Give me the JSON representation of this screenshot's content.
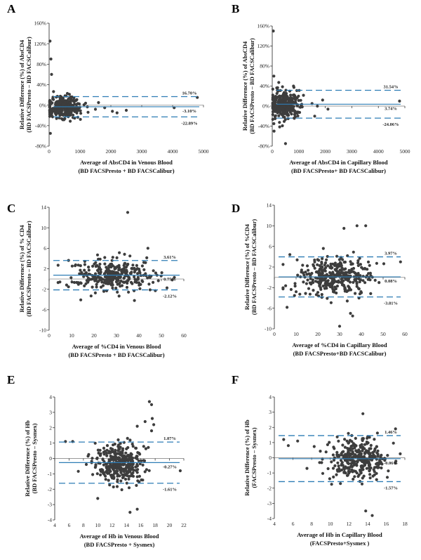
{
  "colors": {
    "points": "#3d3d3d",
    "limit_line": "#2e7db5",
    "mean_line": "#2e7db5",
    "zero_line": "#9a9a9a",
    "axis": "#222222"
  },
  "chart_data": [
    {
      "panel": "A",
      "type": "scatter",
      "xlabel_line1": "Average of AbsCD4 in Venous Blood",
      "xlabel_line2": "(BD FACSPresto + BD FACSCalibur)",
      "ylabel_line1": "Relative Difference (%) of AbsCD4",
      "ylabel_line2": "(BD FACSPresto – BD FACSCalibur)",
      "xlim": [
        0,
        5000
      ],
      "ylim": [
        -80,
        160
      ],
      "x_ticks": [
        0,
        1000,
        2000,
        3000,
        4000,
        5000
      ],
      "y_ticks": [
        160,
        120,
        80,
        40,
        0,
        -40,
        -80
      ],
      "y_tick_labels": [
        "160%",
        "120%",
        "80%",
        "40%",
        "0%",
        "-40%",
        "-80%"
      ],
      "mean": -3.1,
      "upper_loa": 16.7,
      "lower_loa": -22.89,
      "mean_label": "-3.10%",
      "upper_label": "16.70%",
      "lower_label": "-22.89%",
      "cluster": {
        "x_center": 450,
        "x_spread": 280,
        "x_min": 20,
        "x_max": 1300,
        "y_sd": 10,
        "n": 320
      },
      "extra_points": [
        [
          30,
          125
        ],
        [
          60,
          90
        ],
        [
          80,
          60
        ],
        [
          40,
          -55
        ],
        [
          1500,
          -8
        ],
        [
          1800,
          -5
        ],
        [
          2050,
          -12
        ],
        [
          2200,
          -15
        ],
        [
          2500,
          -10
        ],
        [
          1600,
          5
        ],
        [
          4050,
          -5
        ],
        [
          4800,
          15
        ]
      ]
    },
    {
      "panel": "B",
      "type": "scatter",
      "xlabel_line1": "Average of AbsCD4 in Capillary Blood",
      "xlabel_line2": "(BD FACSPresto+ BD FACSCalibur)",
      "ylabel_line1": "Relative Difference (%) of AbsCD4",
      "ylabel_line2": "(BD FACSPresto – BD FACSCalibur)",
      "xlim": [
        0,
        5000
      ],
      "ylim": [
        -80,
        160
      ],
      "x_ticks": [
        0,
        1000,
        2000,
        3000,
        4000,
        5000
      ],
      "y_ticks": [
        160,
        120,
        80,
        40,
        0,
        -40,
        -80
      ],
      "y_tick_labels": [
        "160%",
        "120%",
        "80%",
        "40%",
        "0%",
        "-40%",
        "-80%"
      ],
      "mean": 3.74,
      "upper_loa": 31.54,
      "lower_loa": -24.06,
      "mean_label": "3.74%",
      "upper_label": "31.54%",
      "lower_label": "-24.06%",
      "cluster": {
        "x_center": 450,
        "x_spread": 280,
        "x_min": 20,
        "x_max": 1300,
        "y_sd": 14,
        "n": 320
      },
      "extra_points": [
        [
          40,
          150
        ],
        [
          60,
          60
        ],
        [
          70,
          -50
        ],
        [
          500,
          -75
        ],
        [
          1500,
          5
        ],
        [
          1700,
          0
        ],
        [
          1900,
          12
        ],
        [
          2100,
          -6
        ],
        [
          1600,
          -20
        ],
        [
          4800,
          10
        ]
      ]
    },
    {
      "panel": "C",
      "type": "scatter",
      "xlabel_line1": "Average of %CD4 in Venous Blood",
      "xlabel_line2": "(BD FACSPresto + BD FACSCalibur)",
      "ylabel_line1": "Relative Difference (%) of % CD4",
      "ylabel_line2": "(BD FACSPresto – BD FACSCalibur)",
      "xlim": [
        0,
        60
      ],
      "ylim": [
        -10,
        14
      ],
      "x_ticks": [
        0,
        10,
        20,
        30,
        40,
        50,
        60
      ],
      "y_ticks": [
        14,
        10,
        6,
        2,
        -2,
        -6,
        -10
      ],
      "y_tick_labels": [
        "14",
        "10",
        "6",
        "2",
        "-2",
        "-6",
        "-10"
      ],
      "mean": 0.75,
      "upper_loa": 3.61,
      "lower_loa": -2.12,
      "mean_label": "0.75%",
      "upper_label": "3.61%",
      "lower_label": "-2.12%",
      "cluster": {
        "x_center": 28,
        "x_spread": 9,
        "x_min": 4,
        "x_max": 56,
        "y_sd": 1.4,
        "n": 340
      },
      "extra_points": [
        [
          35,
          13
        ],
        [
          44,
          6
        ],
        [
          36,
          4.5
        ],
        [
          38,
          -4.2
        ]
      ]
    },
    {
      "panel": "D",
      "type": "scatter",
      "xlabel_line1": "Average of %CD4 in Capillary Blood",
      "xlabel_line2": "(BD FACSPresto+BD FACSCalibur)",
      "ylabel_line1": "Relative Difference (%) of %CD4",
      "ylabel_line2": "(BD FACSPresto – BD FACSCalibur)",
      "xlim": [
        0,
        60
      ],
      "ylim": [
        -10,
        14
      ],
      "x_ticks": [
        0,
        10,
        20,
        30,
        40,
        50,
        60
      ],
      "y_ticks": [
        14,
        10,
        6,
        2,
        -2,
        -6,
        -10
      ],
      "y_tick_labels": [
        "14",
        "10",
        "6",
        "2",
        "-2",
        "-6",
        "-10"
      ],
      "mean": 0.08,
      "upper_loa": 3.97,
      "lower_loa": -3.81,
      "mean_label": "0.08%",
      "upper_label": "3.97%",
      "lower_label": "-3.81%",
      "cluster": {
        "x_center": 28,
        "x_spread": 9,
        "x_min": 4,
        "x_max": 56,
        "y_sd": 1.9,
        "n": 340
      },
      "extra_points": [
        [
          38,
          10
        ],
        [
          42,
          10
        ],
        [
          32,
          9.5
        ],
        [
          35,
          -7
        ],
        [
          36,
          -7.5
        ],
        [
          30,
          -9.5
        ],
        [
          58,
          3
        ]
      ]
    },
    {
      "panel": "E",
      "type": "scatter",
      "xlabel_line1": "Average of Hb in Venous Blood",
      "xlabel_line2": "(BD FACSPresto + Sysmex)",
      "ylabel_line1": "Relative Difference (%) of Hb",
      "ylabel_line2": "(BD FACSPresto – Sysmex)",
      "xlim": [
        4,
        22
      ],
      "ylim": [
        -4,
        4
      ],
      "x_ticks": [
        4,
        6,
        8,
        10,
        12,
        14,
        16,
        18,
        20,
        22
      ],
      "y_ticks": [
        4,
        3,
        2,
        1,
        0,
        -1,
        -2,
        -3,
        -4
      ],
      "y_tick_labels": [
        "4",
        "3",
        "2",
        "1",
        "0",
        "-1",
        "-2",
        "-3",
        "-4"
      ],
      "mean": -0.27,
      "upper_loa": 1.07,
      "lower_loa": -1.61,
      "mean_label": "-0.27%",
      "upper_label": "1.07%",
      "lower_label": "-1.61%",
      "cluster": {
        "x_center": 13,
        "x_spread": 1.8,
        "x_min": 5,
        "x_max": 18,
        "y_sd": 0.65,
        "n": 340
      },
      "extra_points": [
        [
          17.2,
          3.7
        ],
        [
          17.5,
          3.5
        ],
        [
          17.6,
          2.6
        ],
        [
          17.8,
          2.2
        ],
        [
          17.5,
          1.8
        ],
        [
          16.6,
          2.4
        ],
        [
          15.5,
          2.1
        ],
        [
          14.5,
          -3.5
        ],
        [
          15.5,
          -3.3
        ],
        [
          10,
          -2.6
        ],
        [
          21.5,
          -0.8
        ],
        [
          5.5,
          1.1
        ],
        [
          6.5,
          1.1
        ]
      ]
    },
    {
      "panel": "F",
      "type": "scatter",
      "xlabel_line1": "Average of Hb in Capillary Blood",
      "xlabel_line2": "(FACSPresto+Sysmex )",
      "ylabel_line1": "Relative Difference (%) of Hb",
      "ylabel_line2": "(FACSPresto – Sysmex)",
      "xlim": [
        4,
        18
      ],
      "ylim": [
        -4,
        4
      ],
      "x_ticks": [
        4,
        6,
        8,
        10,
        12,
        14,
        16,
        18
      ],
      "y_ticks": [
        4,
        3,
        2,
        1,
        0,
        -1,
        -2,
        -3,
        -4
      ],
      "y_tick_labels": [
        "4",
        "3",
        "2",
        "1",
        "0",
        "-1",
        "-2",
        "-3",
        "-4"
      ],
      "mean": -0.06,
      "upper_loa": 1.46,
      "lower_loa": -1.57,
      "mean_label": "-0.06%",
      "upper_label": "1.46%",
      "lower_label": "-1.57%",
      "cluster": {
        "x_center": 13,
        "x_spread": 1.6,
        "x_min": 5,
        "x_max": 17.5,
        "y_sd": 0.7,
        "n": 340
      },
      "extra_points": [
        [
          13.5,
          2.9
        ],
        [
          13.8,
          -3.5
        ],
        [
          14.5,
          -3.8
        ],
        [
          5,
          1.2
        ],
        [
          5.5,
          0.8
        ],
        [
          6.5,
          1.1
        ],
        [
          17,
          1.9
        ],
        [
          7.5,
          -0.7
        ]
      ]
    }
  ]
}
